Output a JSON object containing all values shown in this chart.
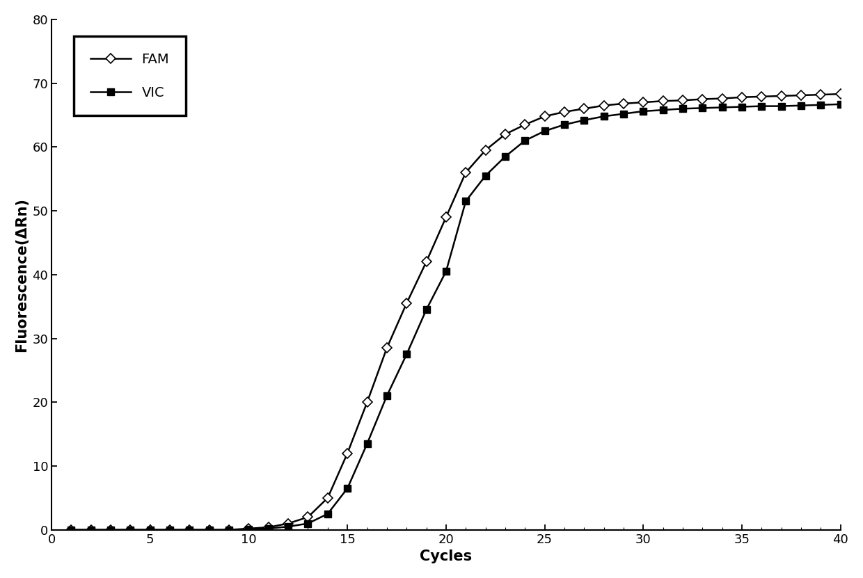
{
  "xlabel": "Cycles",
  "ylabel": "Fluorescence(ΔRn)",
  "xlim": [
    0,
    40
  ],
  "ylim": [
    0,
    80
  ],
  "xticks": [
    0,
    5,
    10,
    15,
    20,
    25,
    30,
    35,
    40
  ],
  "yticks": [
    0,
    10,
    20,
    30,
    40,
    50,
    60,
    70,
    80
  ],
  "fam_cycles": [
    1,
    2,
    3,
    4,
    5,
    6,
    7,
    8,
    9,
    10,
    11,
    12,
    13,
    14,
    15,
    16,
    17,
    18,
    19,
    20,
    21,
    22,
    23,
    24,
    25,
    26,
    27,
    28,
    29,
    30,
    31,
    32,
    33,
    34,
    35,
    36,
    37,
    38,
    39,
    40
  ],
  "fam_values": [
    0.0,
    0.0,
    0.0,
    0.0,
    0.0,
    0.0,
    0.0,
    0.0,
    0.0,
    0.2,
    0.4,
    1.0,
    2.0,
    5.0,
    12.0,
    20.0,
    28.5,
    35.5,
    42.0,
    49.0,
    56.0,
    59.5,
    62.0,
    63.5,
    64.8,
    65.5,
    66.0,
    66.5,
    66.8,
    67.0,
    67.2,
    67.3,
    67.5,
    67.6,
    67.8,
    67.9,
    68.0,
    68.1,
    68.2,
    68.3
  ],
  "vic_cycles": [
    1,
    2,
    3,
    4,
    5,
    6,
    7,
    8,
    9,
    10,
    11,
    12,
    13,
    14,
    15,
    16,
    17,
    18,
    19,
    20,
    21,
    22,
    23,
    24,
    25,
    26,
    27,
    28,
    29,
    30,
    31,
    32,
    33,
    34,
    35,
    36,
    37,
    38,
    39,
    40
  ],
  "vic_values": [
    0.0,
    0.0,
    0.0,
    0.0,
    0.0,
    0.0,
    0.0,
    0.0,
    0.0,
    0.1,
    0.2,
    0.5,
    1.0,
    2.5,
    6.5,
    13.5,
    21.0,
    27.5,
    34.5,
    40.5,
    51.5,
    55.5,
    58.5,
    61.0,
    62.5,
    63.5,
    64.2,
    64.8,
    65.2,
    65.6,
    65.8,
    66.0,
    66.1,
    66.2,
    66.3,
    66.4,
    66.4,
    66.5,
    66.6,
    66.7
  ],
  "line_color": "#000000",
  "marker_size_fam": 7,
  "marker_size_vic": 7,
  "linewidth": 1.8,
  "legend_labels": [
    "FAM",
    "VIC"
  ],
  "legend_loc": "upper left",
  "background_color": "#ffffff",
  "label_fontsize": 15,
  "tick_fontsize": 13,
  "legend_fontsize": 14
}
